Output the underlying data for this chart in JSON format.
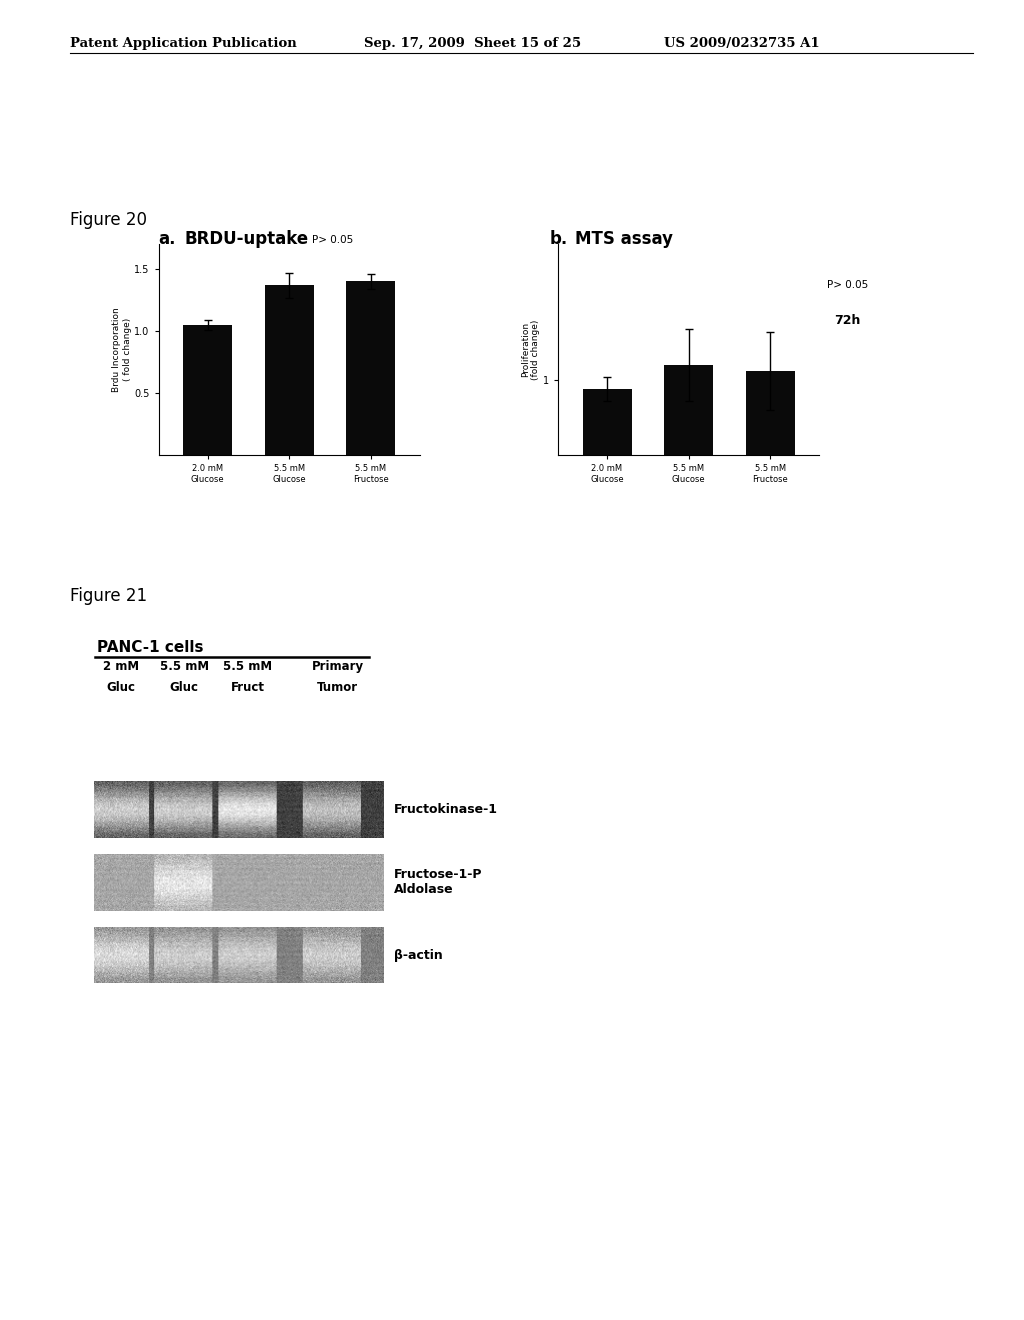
{
  "header_left": "Patent Application Publication",
  "header_mid": "Sep. 17, 2009  Sheet 15 of 25",
  "header_right": "US 2009/0232735 A1",
  "figure20_label": "Figure 20",
  "figure21_label": "Figure 21",
  "panel_a_label": "a.",
  "panel_a_title": "BRDU-uptake",
  "panel_a_pval": "P> 0.05",
  "panel_a_ylabel_line1": "Brdu Incorporation",
  "panel_a_ylabel_line2": "( fold change)",
  "panel_a_categories": [
    "2.0 mM\nGlucose",
    "5.5 mM\nGlucose",
    "5.5 mM\nFructose"
  ],
  "panel_a_values": [
    1.05,
    1.37,
    1.4
  ],
  "panel_a_errors": [
    0.04,
    0.1,
    0.06
  ],
  "panel_a_ylim": [
    0,
    1.7
  ],
  "panel_a_yticks": [
    0.5,
    1.0,
    1.5
  ],
  "panel_b_label": "b.",
  "panel_b_title": "MTS assay",
  "panel_b_pval": "P> 0.05",
  "panel_b_ylabel_line1": "Proliferation",
  "panel_b_ylabel_line2": "(fold change)",
  "panel_b_categories": [
    "2.0 mM\nGlucose",
    "5.5 mM\nGlucose",
    "5.5 mM\nFructose"
  ],
  "panel_b_values": [
    0.97,
    1.05,
    1.03
  ],
  "panel_b_errors": [
    0.04,
    0.12,
    0.13
  ],
  "panel_b_72h": "72h",
  "panel_b_ylim": [
    0.75,
    1.45
  ],
  "panel_b_yticks": [
    1.0
  ],
  "panel_b_ytick_labels": [
    "1"
  ],
  "panc1_title": "PANC-1 cells",
  "col_labels_line1": [
    "2 mM",
    "5.5 mM",
    "5.5 mM",
    "Primary"
  ],
  "col_labels_line2": [
    "Gluc",
    "Gluc",
    "Fruct",
    "Tumor"
  ],
  "gene_labels": [
    "Fructokinase-1",
    "Fructose-1-P\nAldolase",
    "β-actin"
  ],
  "bar_color": "#0a0a0a",
  "background_color": "#ffffff"
}
